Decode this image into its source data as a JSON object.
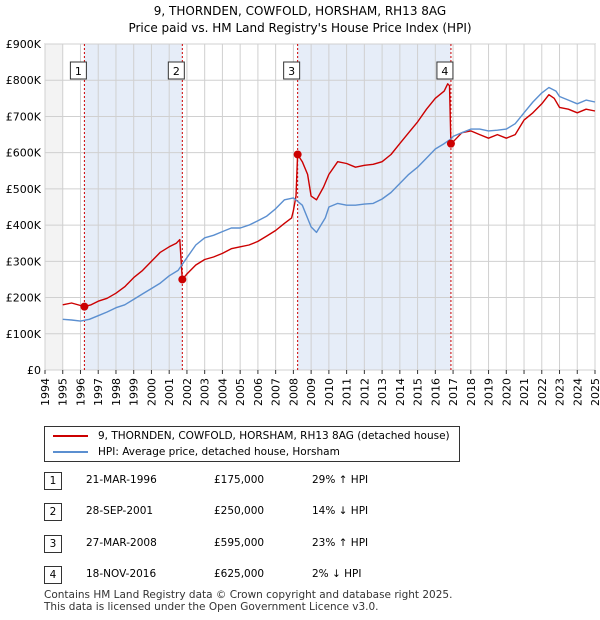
{
  "chart_data": {
    "type": "line",
    "title": "9, THORNDEN, COWFOLD, HORSHAM, RH13 8AG",
    "subtitle": "Price paid vs. HM Land Registry's House Price Index (HPI)",
    "x_ticks": [
      "1994",
      "1995",
      "1996",
      "1997",
      "1998",
      "1999",
      "2000",
      "2001",
      "2002",
      "2003",
      "2004",
      "2005",
      "2006",
      "2007",
      "2008",
      "2009",
      "2010",
      "2011",
      "2012",
      "2013",
      "2014",
      "2015",
      "2016",
      "2017",
      "2018",
      "2019",
      "2020",
      "2021",
      "2022",
      "2023",
      "2024",
      "2025"
    ],
    "y_ticks": [
      "£0",
      "£100K",
      "£200K",
      "£300K",
      "£400K",
      "£500K",
      "£600K",
      "£700K",
      "£800K",
      "£900K"
    ],
    "xlim": [
      1994,
      2025
    ],
    "ylim": [
      0,
      900000
    ],
    "series": [
      {
        "name": "9, THORNDEN, COWFOLD, HORSHAM, RH13 8AG (detached house)",
        "color": "#cc0000",
        "points": [
          [
            1995.0,
            180000
          ],
          [
            1995.5,
            185000
          ],
          [
            1996.0,
            178000
          ],
          [
            1996.22,
            175000
          ],
          [
            1996.6,
            180000
          ],
          [
            1997.0,
            190000
          ],
          [
            1997.5,
            198000
          ],
          [
            1998.0,
            212000
          ],
          [
            1998.5,
            230000
          ],
          [
            1999.0,
            255000
          ],
          [
            1999.5,
            275000
          ],
          [
            2000.0,
            300000
          ],
          [
            2000.5,
            325000
          ],
          [
            2001.0,
            340000
          ],
          [
            2001.4,
            350000
          ],
          [
            2001.6,
            360000
          ],
          [
            2001.74,
            250000
          ],
          [
            2002.0,
            265000
          ],
          [
            2002.5,
            290000
          ],
          [
            2003.0,
            305000
          ],
          [
            2003.5,
            312000
          ],
          [
            2004.0,
            322000
          ],
          [
            2004.5,
            335000
          ],
          [
            2005.0,
            340000
          ],
          [
            2005.5,
            345000
          ],
          [
            2006.0,
            355000
          ],
          [
            2006.5,
            370000
          ],
          [
            2007.0,
            385000
          ],
          [
            2007.5,
            405000
          ],
          [
            2007.9,
            420000
          ],
          [
            2008.0,
            440000
          ],
          [
            2008.15,
            480000
          ],
          [
            2008.24,
            595000
          ],
          [
            2008.5,
            575000
          ],
          [
            2008.8,
            540000
          ],
          [
            2009.0,
            480000
          ],
          [
            2009.3,
            470000
          ],
          [
            2009.7,
            505000
          ],
          [
            2010.0,
            540000
          ],
          [
            2010.5,
            575000
          ],
          [
            2011.0,
            570000
          ],
          [
            2011.5,
            560000
          ],
          [
            2012.0,
            565000
          ],
          [
            2012.5,
            568000
          ],
          [
            2013.0,
            575000
          ],
          [
            2013.5,
            595000
          ],
          [
            2014.0,
            625000
          ],
          [
            2014.5,
            655000
          ],
          [
            2015.0,
            685000
          ],
          [
            2015.5,
            720000
          ],
          [
            2016.0,
            750000
          ],
          [
            2016.5,
            770000
          ],
          [
            2016.7,
            790000
          ],
          [
            2016.8,
            785000
          ],
          [
            2016.88,
            625000
          ],
          [
            2017.0,
            630000
          ],
          [
            2017.5,
            655000
          ],
          [
            2018.0,
            660000
          ],
          [
            2018.5,
            650000
          ],
          [
            2019.0,
            640000
          ],
          [
            2019.5,
            650000
          ],
          [
            2020.0,
            640000
          ],
          [
            2020.5,
            650000
          ],
          [
            2021.0,
            690000
          ],
          [
            2021.5,
            710000
          ],
          [
            2022.0,
            735000
          ],
          [
            2022.4,
            760000
          ],
          [
            2022.7,
            750000
          ],
          [
            2023.0,
            725000
          ],
          [
            2023.5,
            720000
          ],
          [
            2024.0,
            710000
          ],
          [
            2024.5,
            720000
          ],
          [
            2025.0,
            715000
          ]
        ]
      },
      {
        "name": "HPI: Average price, detached house, Horsham",
        "color": "#5b8fd0",
        "points": [
          [
            1995.0,
            140000
          ],
          [
            1995.5,
            138000
          ],
          [
            1996.0,
            135000
          ],
          [
            1996.5,
            140000
          ],
          [
            1997.0,
            150000
          ],
          [
            1997.5,
            160000
          ],
          [
            1998.0,
            172000
          ],
          [
            1998.5,
            180000
          ],
          [
            1999.0,
            195000
          ],
          [
            1999.5,
            210000
          ],
          [
            2000.0,
            225000
          ],
          [
            2000.5,
            240000
          ],
          [
            2001.0,
            260000
          ],
          [
            2001.5,
            275000
          ],
          [
            2002.0,
            310000
          ],
          [
            2002.5,
            345000
          ],
          [
            2003.0,
            365000
          ],
          [
            2003.5,
            372000
          ],
          [
            2004.0,
            382000
          ],
          [
            2004.5,
            392000
          ],
          [
            2005.0,
            392000
          ],
          [
            2005.5,
            400000
          ],
          [
            2006.0,
            412000
          ],
          [
            2006.5,
            425000
          ],
          [
            2007.0,
            445000
          ],
          [
            2007.5,
            470000
          ],
          [
            2008.0,
            475000
          ],
          [
            2008.5,
            455000
          ],
          [
            2009.0,
            395000
          ],
          [
            2009.3,
            380000
          ],
          [
            2009.8,
            420000
          ],
          [
            2010.0,
            450000
          ],
          [
            2010.5,
            460000
          ],
          [
            2011.0,
            455000
          ],
          [
            2011.5,
            455000
          ],
          [
            2012.0,
            458000
          ],
          [
            2012.5,
            460000
          ],
          [
            2013.0,
            472000
          ],
          [
            2013.5,
            490000
          ],
          [
            2014.0,
            515000
          ],
          [
            2014.5,
            540000
          ],
          [
            2015.0,
            560000
          ],
          [
            2015.5,
            585000
          ],
          [
            2016.0,
            610000
          ],
          [
            2016.5,
            625000
          ],
          [
            2016.88,
            638000
          ],
          [
            2017.0,
            645000
          ],
          [
            2017.5,
            655000
          ],
          [
            2018.0,
            665000
          ],
          [
            2018.5,
            665000
          ],
          [
            2019.0,
            660000
          ],
          [
            2019.5,
            662000
          ],
          [
            2020.0,
            665000
          ],
          [
            2020.5,
            680000
          ],
          [
            2021.0,
            710000
          ],
          [
            2021.5,
            740000
          ],
          [
            2022.0,
            765000
          ],
          [
            2022.4,
            780000
          ],
          [
            2022.8,
            770000
          ],
          [
            2023.0,
            755000
          ],
          [
            2023.5,
            745000
          ],
          [
            2024.0,
            735000
          ],
          [
            2024.5,
            745000
          ],
          [
            2025.0,
            740000
          ]
        ]
      }
    ],
    "sales": [
      {
        "label": "1",
        "x": 1996.22,
        "price": 175000
      },
      {
        "label": "2",
        "x": 2001.74,
        "price": 250000
      },
      {
        "label": "3",
        "x": 2008.24,
        "price": 595000
      },
      {
        "label": "4",
        "x": 2016.88,
        "price": 625000
      }
    ]
  },
  "legend": {
    "property": "9, THORNDEN, COWFOLD, HORSHAM, RH13 8AG (detached house)",
    "hpi": "HPI: Average price, detached house, Horsham"
  },
  "sales_table": [
    {
      "num": "1",
      "date": "21-MAR-1996",
      "price": "£175,000",
      "hpi": "29% ↑ HPI"
    },
    {
      "num": "2",
      "date": "28-SEP-2001",
      "price": "£250,000",
      "hpi": "14% ↓ HPI"
    },
    {
      "num": "3",
      "date": "27-MAR-2008",
      "price": "£595,000",
      "hpi": "23% ↑ HPI"
    },
    {
      "num": "4",
      "date": "18-NOV-2016",
      "price": "£625,000",
      "hpi": "2% ↓ HPI"
    }
  ],
  "footer": {
    "line1": "Contains HM Land Registry data © Crown copyright and database right 2025.",
    "line2": "This data is licensed under the Open Government Licence v3.0."
  }
}
